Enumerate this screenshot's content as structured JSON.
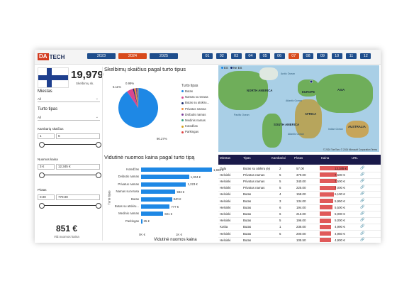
{
  "logo": {
    "part1": "DA",
    "part2": "TECH"
  },
  "years": [
    {
      "label": "2023",
      "color": "#1f4e8c"
    },
    {
      "label": "2024",
      "color": "#d84a1b"
    },
    {
      "label": "2025",
      "color": "#1f4e8c"
    }
  ],
  "months": [
    {
      "label": "01",
      "color": "#1f4e8c"
    },
    {
      "label": "02",
      "color": "#1f4e8c"
    },
    {
      "label": "03",
      "color": "#1f4e8c"
    },
    {
      "label": "04",
      "color": "#1f4e8c"
    },
    {
      "label": "05",
      "color": "#1f4e8c"
    },
    {
      "label": "06",
      "color": "#1f4e8c"
    },
    {
      "label": "07",
      "color": "#d84a1b"
    },
    {
      "label": "08",
      "color": "#1f4e8c"
    },
    {
      "label": "09",
      "color": "#1f4e8c"
    },
    {
      "label": "10",
      "color": "#1f4e8c"
    },
    {
      "label": "11",
      "color": "#1f4e8c"
    },
    {
      "label": "12",
      "color": "#1f4e8c"
    }
  ],
  "sidebar": {
    "count_value": "19,979",
    "count_label": "Skelbimų sk.",
    "miestas_label": "Miestas",
    "miestas_value": "All",
    "turto_label": "Turto tipas",
    "turto_value": "All",
    "kambariai_label": "Kambarių skaičius",
    "kambariai_min": "1",
    "kambariai_max": "6",
    "nuomos_label": "Nuomos kaina",
    "nuomos_min": "3 €",
    "nuomos_max": "12,345 €",
    "plotas_label": "Plotas",
    "plotas_min": "0.00",
    "plotas_max": "770.00",
    "kpi_value": "851 €",
    "kpi_label": "Vid.nuomos kaina"
  },
  "pie": {
    "title": "Skelbimų skaičius pagal turto tipus",
    "legend_title": "Turto tipas",
    "label_small1": "5.11%",
    "label_small2": "0.99%",
    "label_big": "90.27%"
  },
  "chart_data": [
    {
      "type": "pie",
      "title": "Skelbimų skaičius pagal turto tipus",
      "legend_title": "Turto tipas",
      "slices": [
        {
          "name": "Butas",
          "value": 90.27,
          "color": "#1e88e5"
        },
        {
          "name": "Namas su terasa",
          "value": 5.11,
          "color": "#d9468f"
        },
        {
          "name": "Butas su atskiru...",
          "value": 0.99,
          "color": "#1a2b6e"
        },
        {
          "name": "Privatus namas",
          "value": 1.5,
          "color": "#f08c3c"
        },
        {
          "name": "Dvibutis namas",
          "value": 1.0,
          "color": "#7a3c9a"
        },
        {
          "name": "Medinis namas",
          "value": 0.5,
          "color": "#2e9e7a"
        },
        {
          "name": "Kotedžas",
          "value": 0.4,
          "color": "#d4a017"
        },
        {
          "name": "Parkingas",
          "value": 0.23,
          "color": "#e04040"
        }
      ]
    },
    {
      "type": "bar",
      "title": "Vidutinė nuomos kaina pagal turto tipą",
      "xlabel": "Vidutinė nuomos kaina",
      "ylabel": "Turto tipas",
      "x_ticks": [
        "0K €",
        "1K €"
      ],
      "xlim": [
        0,
        1926
      ],
      "categories": [
        "Kotedžas",
        "Dvibutis namas",
        "Privatus namas",
        "Namas su terasa",
        "Butas",
        "Butas su atskiru...",
        "Medinis namas",
        "Parkingas"
      ],
      "values": [
        1926,
        1304,
        1223,
        933,
        840,
        777,
        601,
        25
      ],
      "value_labels": [
        "1,926 €",
        "1,304 €",
        "1,223 €",
        "933 €",
        "840 €",
        "777 €",
        "601 €",
        "25 €"
      ]
    }
  ],
  "map": {
    "legend_es": "ES",
    "legend_ne_es": "Ne ES",
    "legend_es_color": "#1e88e5",
    "legend_ne_es_color": "#1a2b6e",
    "labels": {
      "north_america": "NORTH AMERICA",
      "europe": "EUROPE",
      "asia": "ASIA",
      "africa": "AFRICA",
      "south_america": "SOUTH AMERICA",
      "australia": "AUSTRALIA",
      "atlantic1": "Atlantic Ocean",
      "atlantic2": "Atlantic Ocean",
      "pacific": "Pacific Ocean",
      "indian": "Indian Ocean",
      "arctic": "Arctic Ocean"
    },
    "copyright": "© 2024 TomTom, © 2024 Microsoft Corporation   Terms"
  },
  "table": {
    "headers": [
      "Miestas",
      "Tipas",
      "Kambariai",
      "Plotas",
      "Kaina",
      "URL"
    ],
    "rows": [
      {
        "miestas": "Oulu",
        "tipas": "Butas su atskiru įėjimu",
        "kambariai": "2",
        "plotas": "57.00",
        "kaina": "12,345 €",
        "frac": 1.0
      },
      {
        "miestas": "Helsinki",
        "tipas": "Privatus namas",
        "kambariai": "5",
        "plotas": "379.00",
        "kaina": "7,500 €",
        "frac": 0.61
      },
      {
        "miestas": "Helsinki",
        "tipas": "Privatus namas",
        "kambariai": "5",
        "plotas": "340.00",
        "kaina": "7,500 €",
        "frac": 0.61
      },
      {
        "miestas": "Helsinki",
        "tipas": "Privatus namas",
        "kambariai": "5",
        "plotas": "225.00",
        "kaina": "7,000 €",
        "frac": 0.57
      },
      {
        "miestas": "Helsinki",
        "tipas": "Butas",
        "kambariai": "4",
        "plotas": "158.00",
        "kaina": "6,100 €",
        "frac": 0.49
      },
      {
        "miestas": "Helsinki",
        "tipas": "Butas",
        "kambariai": "3",
        "plotas": "134.00",
        "kaina": "5,950 €",
        "frac": 0.48
      },
      {
        "miestas": "Helsinki",
        "tipas": "Butas",
        "kambariai": "6",
        "plotas": "194.00",
        "kaina": "5,500 €",
        "frac": 0.45
      },
      {
        "miestas": "Helsinki",
        "tipas": "Butas",
        "kambariai": "6",
        "plotas": "216.00",
        "kaina": "5,000 €",
        "frac": 0.41
      },
      {
        "miestas": "Helsinki",
        "tipas": "Butas",
        "kambariai": "5",
        "plotas": "196.00",
        "kaina": "5,000 €",
        "frac": 0.41
      },
      {
        "miestas": "Kotka",
        "tipas": "Butas",
        "kambariai": "1",
        "plotas": "236.00",
        "kaina": "4,990 €",
        "frac": 0.4
      },
      {
        "miestas": "Helsinki",
        "tipas": "Butas",
        "kambariai": "5",
        "plotas": "200.00",
        "kaina": "4,950 €",
        "frac": 0.4
      },
      {
        "miestas": "Helsinki",
        "tipas": "Butas",
        "kambariai": "",
        "plotas": "105.50",
        "kaina": "4,900 €",
        "frac": 0.4
      }
    ]
  }
}
